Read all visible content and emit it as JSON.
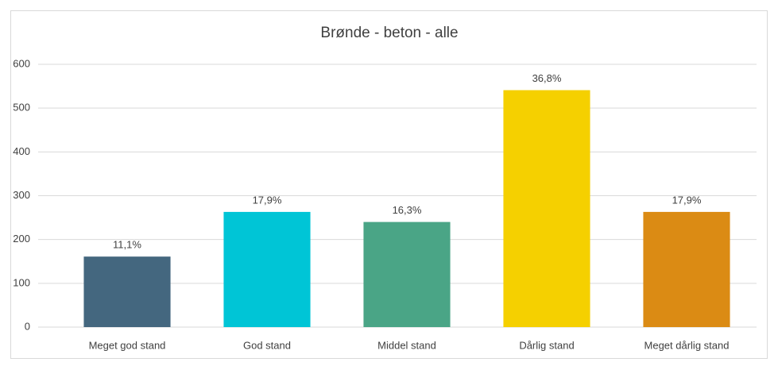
{
  "chart_data": {
    "type": "bar",
    "title": "Brønde - beton - alle",
    "categories": [
      "Meget god stand",
      "God stand",
      "Middel stand",
      "Dårlig stand",
      "Meget dårlig stand"
    ],
    "values": [
      161,
      263,
      240,
      541,
      263
    ],
    "colors": [
      "#44677f",
      "#00c5d6",
      "#4aa586",
      "#f5d000",
      "#db8b14"
    ],
    "shares": [
      11.1,
      17.9,
      16.3,
      36.8,
      17.9
    ],
    "share_labels": [
      "11,1%",
      "17,9%",
      "16,3%",
      "36,8%",
      "17,9%"
    ],
    "ylim": [
      0,
      600
    ],
    "yticks": [
      0,
      100,
      200,
      300,
      400,
      500,
      600
    ],
    "grid": true
  }
}
